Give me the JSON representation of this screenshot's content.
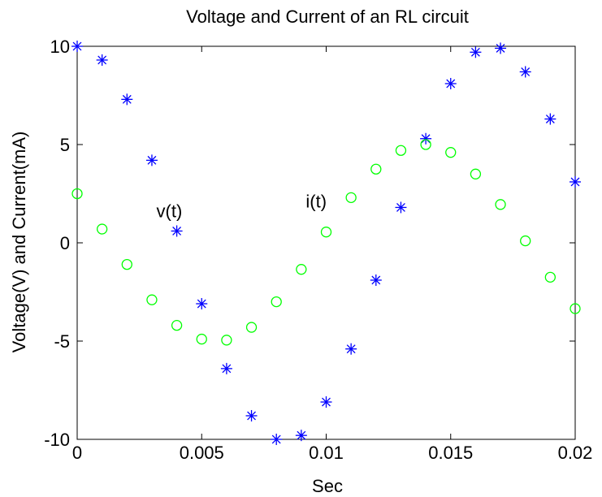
{
  "chart_data": {
    "type": "scatter",
    "title": "Voltage and Current of an RL circuit",
    "xlabel": "Sec",
    "ylabel": "Voltage(V) and Current(mA)",
    "xlim": [
      0,
      0.02
    ],
    "ylim": [
      -10,
      10
    ],
    "xticks": [
      0,
      0.005,
      0.01,
      0.015,
      0.02
    ],
    "xtick_labels": [
      "0",
      "0.005",
      "0.01",
      "0.015",
      "0.02"
    ],
    "yticks": [
      -10,
      -5,
      0,
      5,
      10
    ],
    "ytick_labels": [
      "-10",
      "-5",
      "0",
      "5",
      "10"
    ],
    "grid": false,
    "x": [
      0,
      0.001,
      0.002,
      0.003,
      0.004,
      0.005,
      0.006,
      0.007,
      0.008,
      0.009,
      0.01,
      0.011,
      0.012,
      0.013,
      0.014,
      0.015,
      0.016,
      0.017,
      0.018,
      0.019,
      0.02
    ],
    "series": [
      {
        "marker": "asterisk",
        "color": "#0000ff",
        "values": [
          10.0,
          9.3,
          7.3,
          4.2,
          0.6,
          -3.1,
          -6.4,
          -8.8,
          -10.0,
          -9.8,
          -8.1,
          -5.4,
          -1.9,
          1.8,
          5.3,
          8.1,
          9.7,
          9.9,
          8.7,
          6.3,
          3.1
        ]
      },
      {
        "marker": "circle",
        "color": "#00ff00",
        "values": [
          2.5,
          0.7,
          -1.1,
          -2.9,
          -4.2,
          -4.9,
          -4.95,
          -4.3,
          -3.0,
          -1.35,
          0.55,
          2.3,
          3.75,
          4.7,
          5.0,
          4.6,
          3.5,
          1.95,
          0.1,
          -1.75,
          -3.35
        ]
      }
    ],
    "annotations": [
      {
        "text": "v(t)",
        "x": 0.0037,
        "y": 1.3
      },
      {
        "text": "i(t)",
        "x": 0.0096,
        "y": 1.8
      }
    ]
  }
}
